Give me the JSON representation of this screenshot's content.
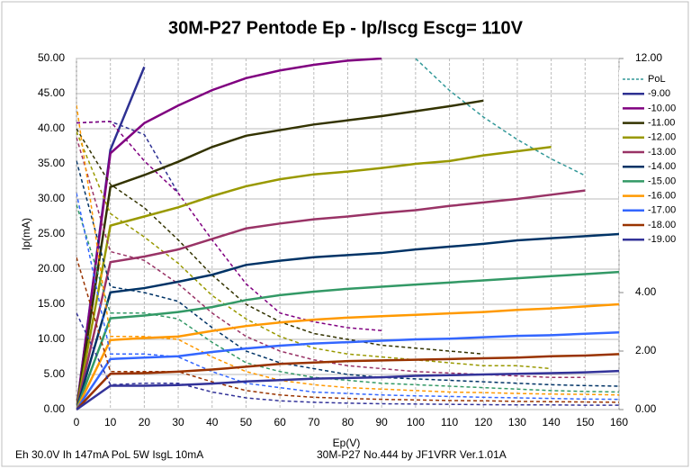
{
  "chart_data": {
    "type": "line",
    "title": "30M-P27 Pentode Ep - Ip/Iscg Escg= 110V",
    "x_label": "Ep(V)",
    "y_label": "Ip(mA)",
    "footer_left": "Eh  30.0V Ih 147mA PoL  5W IsgL  10mA",
    "footer_right": "30M-P27 No.444  by JF1VRR Ver.1.01A",
    "x": [
      0,
      10,
      20,
      30,
      40,
      50,
      60,
      70,
      80,
      90,
      100,
      110,
      120,
      130,
      140,
      150,
      160
    ],
    "xlim": [
      0,
      160
    ],
    "xticks": [
      0,
      10,
      20,
      30,
      40,
      50,
      60,
      70,
      80,
      90,
      100,
      110,
      120,
      130,
      140,
      150,
      160
    ],
    "ylim": [
      0,
      50
    ],
    "yticks": [
      {
        "value": 0,
        "label": "0.00"
      },
      {
        "value": 5,
        "label": "5.00"
      },
      {
        "value": 10,
        "label": "10.00"
      },
      {
        "value": 15,
        "label": "15.00"
      },
      {
        "value": 20,
        "label": "20.00"
      },
      {
        "value": 25,
        "label": "25.00"
      },
      {
        "value": 30,
        "label": "30.00"
      },
      {
        "value": 35,
        "label": "35.00"
      },
      {
        "value": 40,
        "label": "40.00"
      },
      {
        "value": 45,
        "label": "45.00"
      },
      {
        "value": 50,
        "label": "50.00"
      }
    ],
    "y2lim": [
      0,
      12
    ],
    "y2ticks": [
      {
        "value": 0,
        "label": "0.00"
      },
      {
        "value": 2,
        "label": "2.00"
      },
      {
        "value": 4,
        "label": "4.00"
      },
      {
        "value": 12,
        "label": "12.00"
      }
    ],
    "grid": true,
    "legend": "right",
    "series": [
      {
        "name": "PoL",
        "color": "#339999",
        "dash": true,
        "values": [
          null,
          null,
          null,
          null,
          null,
          null,
          null,
          null,
          null,
          null,
          50,
          45.45,
          41.67,
          38.46,
          35.71,
          33.33,
          null
        ]
      },
      {
        "name": "-9.00",
        "color": "#2e3192",
        "values": [
          0,
          37,
          48.8,
          null,
          null,
          null,
          null,
          null,
          null,
          null,
          null,
          null,
          null,
          null,
          null,
          null,
          null
        ],
        "screen_values": [
          9.8,
          9.85,
          9.4,
          7.4,
          null,
          null,
          null,
          null,
          null,
          null,
          null,
          null,
          null,
          null,
          null,
          null,
          null
        ]
      },
      {
        "name": "-10.00",
        "color": "#800080",
        "values": [
          0,
          36.5,
          40.8,
          43.3,
          45.5,
          47.2,
          48.3,
          49.1,
          49.7,
          50,
          null,
          null,
          null,
          null,
          null,
          null,
          null
        ],
        "screen_values": [
          9.8,
          9.85,
          8.5,
          7.4,
          5.8,
          4.3,
          3.3,
          3.0,
          2.8,
          2.7,
          null,
          null,
          null,
          null,
          null,
          null,
          null
        ]
      },
      {
        "name": "-11.00",
        "color": "#333300",
        "values": [
          0,
          31.7,
          33.4,
          35.3,
          37.4,
          39,
          39.8,
          40.6,
          41.2,
          41.8,
          42.5,
          43.2,
          44,
          null,
          null,
          null,
          null
        ],
        "screen_values": [
          9.6,
          7.7,
          6.9,
          5.8,
          4.6,
          3.6,
          3.0,
          2.6,
          2.4,
          2.2,
          2.1,
          2.0,
          1.9,
          null,
          null,
          null,
          null
        ]
      },
      {
        "name": "-12.00",
        "color": "#999900",
        "values": [
          0,
          26.2,
          27.5,
          28.8,
          30.4,
          31.8,
          32.8,
          33.5,
          33.9,
          34.4,
          35,
          35.4,
          36.2,
          36.8,
          37.4,
          null,
          null
        ],
        "screen_values": [
          9.5,
          6.7,
          5.9,
          5.0,
          3.9,
          3.1,
          2.5,
          2.1,
          1.9,
          1.8,
          1.7,
          1.6,
          1.5,
          1.5,
          1.4,
          null,
          null
        ]
      },
      {
        "name": "-13.00",
        "color": "#993366",
        "values": [
          0,
          21,
          21.8,
          22.8,
          24.3,
          25.8,
          26.5,
          27.1,
          27.5,
          28,
          28.4,
          29,
          29.5,
          30,
          30.6,
          31.2,
          null
        ],
        "screen_values": [
          9.3,
          5.4,
          5.1,
          4.3,
          3.3,
          2.5,
          2.0,
          1.7,
          1.5,
          1.4,
          1.3,
          1.25,
          1.2,
          1.15,
          1.1,
          1.1,
          null
        ]
      },
      {
        "name": "-14.00",
        "color": "#003366",
        "values": [
          0,
          16.7,
          17.3,
          18.2,
          19.2,
          20.6,
          21.2,
          21.7,
          22,
          22.3,
          22.8,
          23.2,
          23.6,
          24.1,
          24.4,
          24.7,
          25
        ],
        "screen_values": [
          8.5,
          4.2,
          4.0,
          3.7,
          2.8,
          2.0,
          1.6,
          1.4,
          1.2,
          1.1,
          1.05,
          1.0,
          0.95,
          0.9,
          0.85,
          0.82,
          0.8
        ]
      },
      {
        "name": "-15.00",
        "color": "#339966",
        "values": [
          0,
          13,
          13.4,
          13.9,
          14.6,
          15.6,
          16.3,
          16.8,
          17.2,
          17.5,
          17.8,
          18.1,
          18.4,
          18.7,
          19,
          19.3,
          19.6
        ],
        "screen_values": [
          7.0,
          3.3,
          3.3,
          3.1,
          2.3,
          1.6,
          1.3,
          1.1,
          1.0,
          0.9,
          0.85,
          0.8,
          0.75,
          0.7,
          0.65,
          0.62,
          0.6
        ]
      },
      {
        "name": "-16.00",
        "color": "#ff9900",
        "values": [
          0,
          9.9,
          10.2,
          10.4,
          11.2,
          11.9,
          12.4,
          12.8,
          13.1,
          13.3,
          13.5,
          13.7,
          13.9,
          14.2,
          14.4,
          14.7,
          15
        ],
        "screen_values": [
          10.4,
          2.5,
          2.5,
          2.4,
          1.8,
          1.3,
          1.0,
          0.85,
          0.75,
          0.7,
          0.65,
          0.6,
          0.58,
          0.55,
          0.53,
          0.52,
          0.5
        ]
      },
      {
        "name": "-17.00",
        "color": "#3366ff",
        "values": [
          0,
          7.2,
          7.4,
          7.6,
          8.2,
          8.7,
          9.1,
          9.4,
          9.6,
          9.8,
          10,
          10.1,
          10.3,
          10.5,
          10.6,
          10.8,
          11
        ],
        "screen_values": [
          7.4,
          1.9,
          1.9,
          1.8,
          1.3,
          0.9,
          0.75,
          0.6,
          0.55,
          0.5,
          0.47,
          0.45,
          0.42,
          0.4,
          0.38,
          0.36,
          0.35
        ]
      },
      {
        "name": "-18.00",
        "color": "#993300",
        "values": [
          0,
          5.1,
          5.2,
          5.4,
          5.7,
          6.1,
          6.5,
          6.7,
          6.9,
          7,
          7.1,
          7.2,
          7.3,
          7.4,
          7.6,
          7.7,
          7.9
        ],
        "screen_values": [
          5.2,
          1.3,
          1.3,
          1.3,
          0.95,
          0.65,
          0.5,
          0.42,
          0.38,
          0.35,
          0.33,
          0.31,
          0.3,
          0.28,
          0.27,
          0.26,
          0.25
        ]
      },
      {
        "name": "-19.00",
        "color": "#333399",
        "values": [
          0,
          3.4,
          3.4,
          3.5,
          3.7,
          4,
          4.2,
          4.4,
          4.5,
          4.6,
          4.8,
          4.9,
          5,
          5.1,
          5.2,
          5.3,
          5.5
        ],
        "screen_values": [
          3.3,
          0.85,
          0.9,
          0.9,
          0.6,
          0.4,
          0.3,
          0.25,
          0.22,
          0.2,
          0.19,
          0.18,
          0.17,
          0.16,
          0.16,
          0.15,
          0.15
        ]
      }
    ]
  }
}
